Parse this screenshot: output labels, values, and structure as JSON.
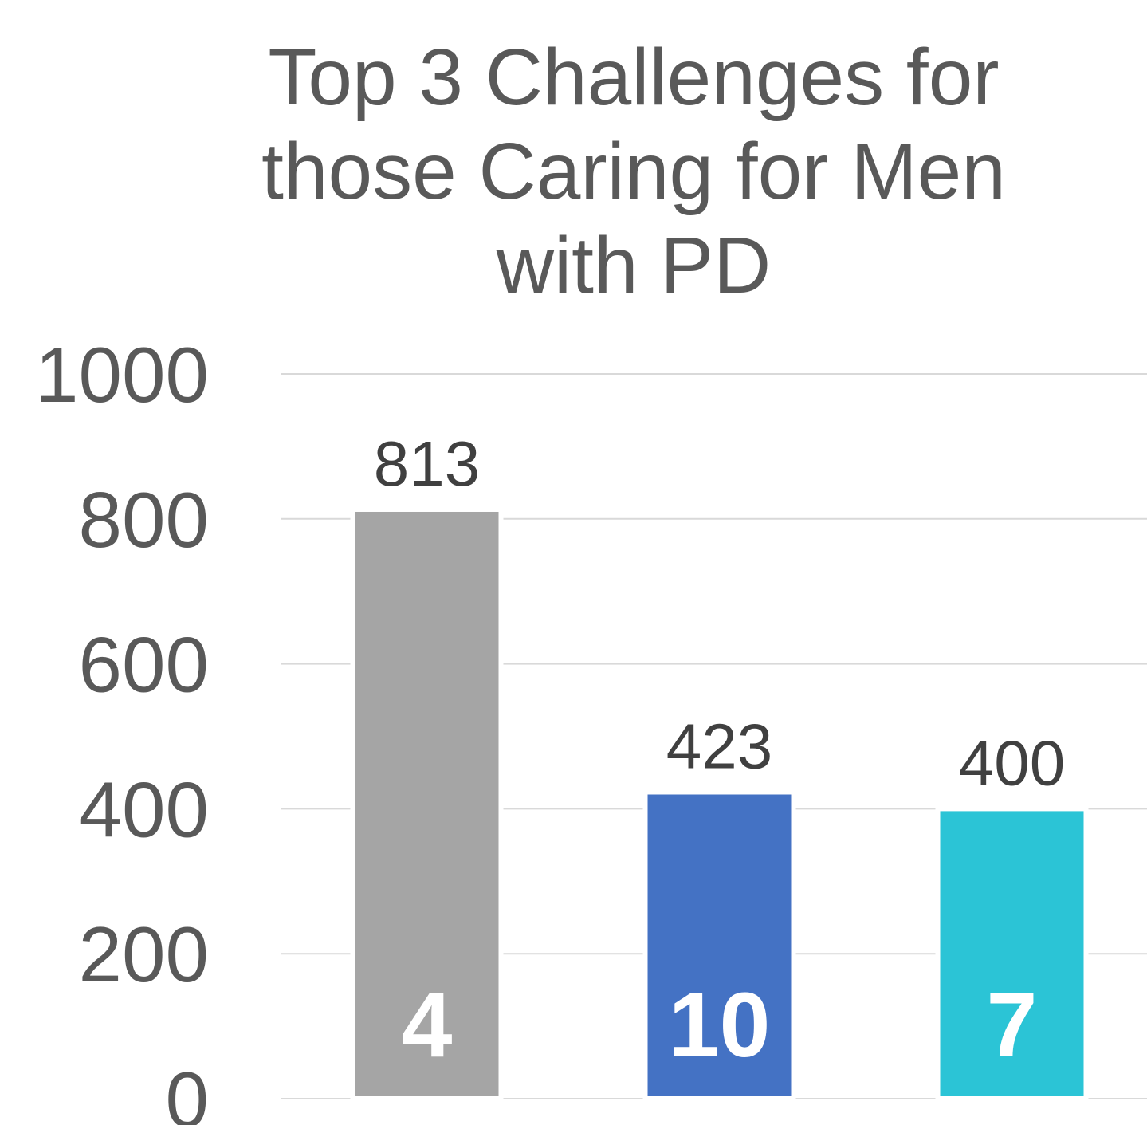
{
  "chart_data": {
    "type": "bar",
    "title": "Top 3 Challenges for those Caring for Men with PD",
    "categories": [
      "4",
      "10",
      "7"
    ],
    "values": [
      813,
      423,
      400
    ],
    "colors": [
      "#a5a5a5",
      "#4472c4",
      "#2bc4d6"
    ],
    "ylim": [
      0,
      1000
    ],
    "yticks": [
      0,
      200,
      400,
      600,
      800,
      1000
    ],
    "grid": true
  }
}
